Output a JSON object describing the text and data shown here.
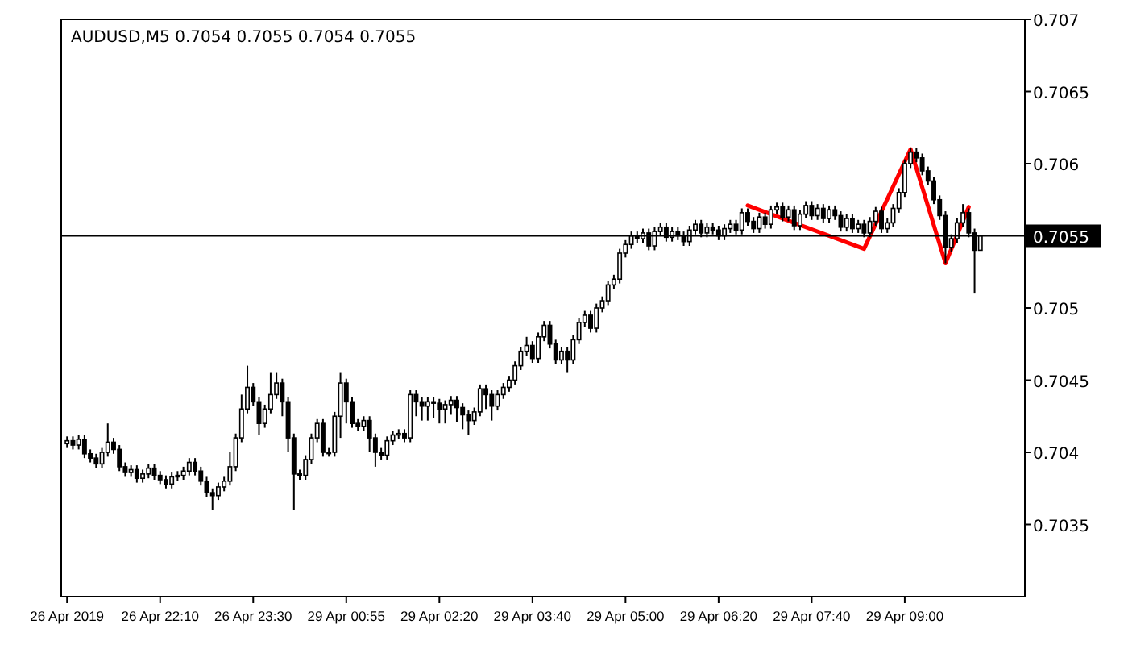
{
  "chart_data": {
    "type": "candlestick",
    "title": "AUDUSD,M5 0.7054 0.7055 0.7054 0.7055",
    "categories": [
      "26 Apr 2019",
      null,
      null,
      null,
      null,
      null,
      null,
      null,
      null,
      null,
      null,
      null,
      null,
      null,
      null,
      null,
      "26 Apr 22:10",
      null,
      null,
      null,
      null,
      null,
      null,
      null,
      null,
      null,
      null,
      null,
      null,
      null,
      null,
      null,
      "26 Apr 23:30",
      null,
      null,
      null,
      null,
      null,
      null,
      null,
      null,
      null,
      null,
      null,
      null,
      null,
      null,
      null,
      "29 Apr 00:55",
      null,
      null,
      null,
      null,
      null,
      null,
      null,
      null,
      null,
      null,
      null,
      null,
      null,
      null,
      null,
      "29 Apr 02:20",
      null,
      null,
      null,
      null,
      null,
      null,
      null,
      null,
      null,
      null,
      null,
      null,
      null,
      null,
      null,
      "29 Apr 03:40",
      null,
      null,
      null,
      null,
      null,
      null,
      null,
      null,
      null,
      null,
      null,
      null,
      null,
      null,
      null,
      "29 Apr 05:00",
      null,
      null,
      null,
      null,
      null,
      null,
      null,
      null,
      null,
      null,
      null,
      null,
      null,
      null,
      null,
      "29 Apr 06:20",
      null,
      null,
      null,
      null,
      null,
      null,
      null,
      null,
      null,
      null,
      null,
      null,
      null,
      null,
      null,
      "29 Apr 07:40",
      null,
      null,
      null,
      null,
      null,
      null,
      null,
      null,
      null,
      null,
      null,
      null,
      null,
      null,
      null,
      "29 Apr 09:00",
      null,
      null,
      null,
      null,
      null,
      null,
      null,
      null,
      null,
      null,
      null,
      null,
      null
    ],
    "ylim": [
      0.703,
      0.707
    ],
    "yticks": [
      0.7035,
      0.704,
      0.7045,
      0.705,
      0.706,
      0.7065,
      0.707
    ],
    "grid": false,
    "ref_lines": [
      {
        "axis": "y",
        "value": 0.7055,
        "label": "0.7055",
        "color": "#000000"
      }
    ],
    "series": [
      {
        "color": "#000000",
        "ohlc": [
          [
            0.70406,
            0.70411,
            0.70403,
            0.70408
          ],
          [
            0.70408,
            0.70411,
            0.70402,
            0.70405
          ],
          [
            0.70405,
            0.70412,
            0.70402,
            0.70409
          ],
          [
            0.70409,
            0.70412,
            0.70396,
            0.70399
          ],
          [
            0.70399,
            0.70402,
            0.70393,
            0.70396
          ],
          [
            0.70396,
            0.70399,
            0.70389,
            0.70392
          ],
          [
            0.70392,
            0.70403,
            0.70389,
            0.704
          ],
          [
            0.704,
            0.7042,
            0.70397,
            0.70407
          ],
          [
            0.70407,
            0.7041,
            0.70399,
            0.70402
          ],
          [
            0.70402,
            0.70405,
            0.70387,
            0.7039
          ],
          [
            0.7039,
            0.70393,
            0.70383,
            0.70386
          ],
          [
            0.70386,
            0.70391,
            0.70383,
            0.70388
          ],
          [
            0.70388,
            0.70391,
            0.70379,
            0.70382
          ],
          [
            0.70382,
            0.70388,
            0.70379,
            0.70385
          ],
          [
            0.70385,
            0.70392,
            0.70382,
            0.70389
          ],
          [
            0.70389,
            0.70392,
            0.70381,
            0.70384
          ],
          [
            0.70384,
            0.70387,
            0.70378,
            0.70381
          ],
          [
            0.70381,
            0.70384,
            0.70375,
            0.70378
          ],
          [
            0.70378,
            0.70386,
            0.70375,
            0.70383
          ],
          [
            0.70383,
            0.70387,
            0.7038,
            0.70384
          ],
          [
            0.70384,
            0.7039,
            0.70381,
            0.70387
          ],
          [
            0.70387,
            0.70396,
            0.70384,
            0.70393
          ],
          [
            0.70393,
            0.70396,
            0.70384,
            0.70387
          ],
          [
            0.70387,
            0.7039,
            0.70377,
            0.7038
          ],
          [
            0.7038,
            0.70383,
            0.70369,
            0.70372
          ],
          [
            0.70372,
            0.70375,
            0.7036,
            0.7037
          ],
          [
            0.7037,
            0.70379,
            0.70367,
            0.70376
          ],
          [
            0.70376,
            0.70383,
            0.70373,
            0.7038
          ],
          [
            0.7038,
            0.704,
            0.70377,
            0.7039
          ],
          [
            0.7039,
            0.70413,
            0.70387,
            0.7041
          ],
          [
            0.7041,
            0.7044,
            0.70407,
            0.7043
          ],
          [
            0.7043,
            0.7046,
            0.70427,
            0.70445
          ],
          [
            0.70445,
            0.70448,
            0.70432,
            0.70435
          ],
          [
            0.70435,
            0.70438,
            0.70412,
            0.7042
          ],
          [
            0.7042,
            0.70433,
            0.70417,
            0.7043
          ],
          [
            0.7043,
            0.70455,
            0.70427,
            0.7044
          ],
          [
            0.7044,
            0.70455,
            0.70437,
            0.70448
          ],
          [
            0.70448,
            0.70451,
            0.70425,
            0.70435
          ],
          [
            0.70435,
            0.70438,
            0.704,
            0.7041
          ],
          [
            0.7041,
            0.70413,
            0.7036,
            0.70385
          ],
          [
            0.70385,
            0.70388,
            0.70381,
            0.70384
          ],
          [
            0.70384,
            0.70398,
            0.70381,
            0.70395
          ],
          [
            0.70395,
            0.70413,
            0.70392,
            0.7041
          ],
          [
            0.7041,
            0.70423,
            0.70407,
            0.7042
          ],
          [
            0.7042,
            0.70423,
            0.70397,
            0.704
          ],
          [
            0.704,
            0.70403,
            0.70397,
            0.704
          ],
          [
            0.704,
            0.70428,
            0.70397,
            0.70425
          ],
          [
            0.70425,
            0.70455,
            0.7041,
            0.70448
          ],
          [
            0.70448,
            0.70451,
            0.7042,
            0.70435
          ],
          [
            0.70435,
            0.70438,
            0.70417,
            0.7042
          ],
          [
            0.7042,
            0.70423,
            0.70415,
            0.70418
          ],
          [
            0.70418,
            0.70425,
            0.70415,
            0.70422
          ],
          [
            0.70422,
            0.70425,
            0.704,
            0.7041
          ],
          [
            0.7041,
            0.70413,
            0.7039,
            0.704
          ],
          [
            0.704,
            0.70403,
            0.70395,
            0.70398
          ],
          [
            0.70398,
            0.70411,
            0.70395,
            0.70408
          ],
          [
            0.70408,
            0.70415,
            0.70405,
            0.70412
          ],
          [
            0.70412,
            0.70416,
            0.70409,
            0.70413
          ],
          [
            0.70413,
            0.70416,
            0.70407,
            0.7041
          ],
          [
            0.7041,
            0.70443,
            0.70407,
            0.7044
          ],
          [
            0.7044,
            0.70443,
            0.70425,
            0.70435
          ],
          [
            0.70435,
            0.70438,
            0.70422,
            0.70432
          ],
          [
            0.70432,
            0.70438,
            0.70422,
            0.70435
          ],
          [
            0.70435,
            0.70438,
            0.70424,
            0.70434
          ],
          [
            0.70434,
            0.70437,
            0.7042,
            0.7043
          ],
          [
            0.7043,
            0.70436,
            0.7042,
            0.70433
          ],
          [
            0.70433,
            0.70439,
            0.70426,
            0.70436
          ],
          [
            0.70436,
            0.70439,
            0.70421,
            0.70431
          ],
          [
            0.70431,
            0.70434,
            0.70416,
            0.70426
          ],
          [
            0.70426,
            0.70429,
            0.70412,
            0.70422
          ],
          [
            0.70422,
            0.70431,
            0.70419,
            0.70428
          ],
          [
            0.70428,
            0.70447,
            0.70425,
            0.70444
          ],
          [
            0.70444,
            0.70447,
            0.7043,
            0.7044
          ],
          [
            0.7044,
            0.70443,
            0.70422,
            0.70432
          ],
          [
            0.70432,
            0.70443,
            0.70429,
            0.7044
          ],
          [
            0.7044,
            0.70448,
            0.70437,
            0.70445
          ],
          [
            0.70445,
            0.70453,
            0.70442,
            0.7045
          ],
          [
            0.7045,
            0.70463,
            0.70447,
            0.7046
          ],
          [
            0.7046,
            0.70473,
            0.70457,
            0.7047
          ],
          [
            0.7047,
            0.7048,
            0.70467,
            0.70474
          ],
          [
            0.70474,
            0.70477,
            0.70462,
            0.70465
          ],
          [
            0.70465,
            0.70483,
            0.70462,
            0.7048
          ],
          [
            0.7048,
            0.70491,
            0.70477,
            0.70488
          ],
          [
            0.70488,
            0.70491,
            0.70472,
            0.70475
          ],
          [
            0.70475,
            0.70478,
            0.70461,
            0.70464
          ],
          [
            0.70464,
            0.70473,
            0.70461,
            0.7047
          ],
          [
            0.7047,
            0.70473,
            0.70455,
            0.70464
          ],
          [
            0.70464,
            0.70481,
            0.70461,
            0.70478
          ],
          [
            0.70478,
            0.70493,
            0.70475,
            0.7049
          ],
          [
            0.7049,
            0.70498,
            0.70487,
            0.70495
          ],
          [
            0.70495,
            0.70498,
            0.70483,
            0.70486
          ],
          [
            0.70486,
            0.70503,
            0.70483,
            0.705
          ],
          [
            0.705,
            0.70508,
            0.70497,
            0.70505
          ],
          [
            0.70505,
            0.70519,
            0.70502,
            0.70516
          ],
          [
            0.70516,
            0.70523,
            0.70513,
            0.7052
          ],
          [
            0.7052,
            0.70541,
            0.70517,
            0.70538
          ],
          [
            0.70538,
            0.70547,
            0.70535,
            0.70544
          ],
          [
            0.70544,
            0.70553,
            0.70541,
            0.7055
          ],
          [
            0.7055,
            0.70553,
            0.70545,
            0.70548
          ],
          [
            0.70548,
            0.70555,
            0.70545,
            0.70552
          ],
          [
            0.70552,
            0.70555,
            0.7054,
            0.70543
          ],
          [
            0.70543,
            0.70556,
            0.7054,
            0.70553
          ],
          [
            0.70553,
            0.70559,
            0.7055,
            0.70556
          ],
          [
            0.70556,
            0.70559,
            0.70546,
            0.70549
          ],
          [
            0.70549,
            0.70556,
            0.70546,
            0.70553
          ],
          [
            0.70553,
            0.70556,
            0.70547,
            0.7055
          ],
          [
            0.7055,
            0.70553,
            0.70543,
            0.70546
          ],
          [
            0.70546,
            0.70557,
            0.70543,
            0.70554
          ],
          [
            0.70554,
            0.70561,
            0.70551,
            0.70558
          ],
          [
            0.70558,
            0.70561,
            0.70549,
            0.70552
          ],
          [
            0.70552,
            0.70559,
            0.70549,
            0.70556
          ],
          [
            0.70556,
            0.70559,
            0.70551,
            0.70554
          ],
          [
            0.70554,
            0.70557,
            0.70547,
            0.7055
          ],
          [
            0.7055,
            0.70558,
            0.70547,
            0.70555
          ],
          [
            0.70555,
            0.70561,
            0.70552,
            0.70558
          ],
          [
            0.70558,
            0.70561,
            0.70551,
            0.70554
          ],
          [
            0.70554,
            0.70569,
            0.70551,
            0.70566
          ],
          [
            0.70566,
            0.70569,
            0.70557,
            0.7056
          ],
          [
            0.7056,
            0.70563,
            0.70552,
            0.70555
          ],
          [
            0.70555,
            0.70566,
            0.70552,
            0.70563
          ],
          [
            0.70563,
            0.70566,
            0.70555,
            0.70558
          ],
          [
            0.70558,
            0.70571,
            0.70555,
            0.70568
          ],
          [
            0.70568,
            0.70573,
            0.70565,
            0.7057
          ],
          [
            0.7057,
            0.70573,
            0.7056,
            0.70563
          ],
          [
            0.70563,
            0.70571,
            0.7056,
            0.70568
          ],
          [
            0.70568,
            0.70571,
            0.70554,
            0.70557
          ],
          [
            0.70557,
            0.70568,
            0.70554,
            0.70565
          ],
          [
            0.70565,
            0.70574,
            0.70562,
            0.70571
          ],
          [
            0.70571,
            0.70574,
            0.70561,
            0.70564
          ],
          [
            0.70564,
            0.70572,
            0.70561,
            0.70569
          ],
          [
            0.70569,
            0.70572,
            0.70559,
            0.70562
          ],
          [
            0.70562,
            0.70571,
            0.70559,
            0.70568
          ],
          [
            0.70568,
            0.70571,
            0.70561,
            0.70564
          ],
          [
            0.70564,
            0.70567,
            0.70553,
            0.70556
          ],
          [
            0.70556,
            0.70565,
            0.70553,
            0.70562
          ],
          [
            0.70562,
            0.70565,
            0.70552,
            0.70555
          ],
          [
            0.70555,
            0.70561,
            0.70552,
            0.70558
          ],
          [
            0.70558,
            0.70561,
            0.70549,
            0.70552
          ],
          [
            0.70552,
            0.70563,
            0.70549,
            0.7056
          ],
          [
            0.7056,
            0.7057,
            0.70557,
            0.70567
          ],
          [
            0.70567,
            0.7057,
            0.70552,
            0.70555
          ],
          [
            0.70555,
            0.70562,
            0.70552,
            0.70559
          ],
          [
            0.70559,
            0.70572,
            0.70556,
            0.70569
          ],
          [
            0.70569,
            0.70583,
            0.70566,
            0.7058
          ],
          [
            0.7058,
            0.70603,
            0.70577,
            0.706
          ],
          [
            0.706,
            0.70611,
            0.70597,
            0.70608
          ],
          [
            0.70608,
            0.70611,
            0.70601,
            0.70604
          ],
          [
            0.70604,
            0.70607,
            0.70592,
            0.70595
          ],
          [
            0.70595,
            0.70598,
            0.70585,
            0.70588
          ],
          [
            0.70588,
            0.70591,
            0.70572,
            0.70575
          ],
          [
            0.70575,
            0.70578,
            0.70561,
            0.70564
          ],
          [
            0.70564,
            0.70567,
            0.70531,
            0.70542
          ],
          [
            0.70542,
            0.70551,
            0.70539,
            0.70548
          ],
          [
            0.70548,
            0.70562,
            0.70545,
            0.70559
          ],
          [
            0.70559,
            0.70572,
            0.70556,
            0.70566
          ],
          [
            0.70566,
            0.70569,
            0.70549,
            0.70552
          ],
          [
            0.70552,
            0.70555,
            0.7051,
            0.7054
          ],
          [
            0.7054,
            0.7055,
            0.7054,
            0.7055
          ]
        ]
      },
      {
        "type": "line",
        "color": "#ff0000",
        "values": [
          null,
          null,
          null,
          null,
          null,
          null,
          null,
          null,
          null,
          null,
          null,
          null,
          null,
          null,
          null,
          null,
          null,
          null,
          null,
          null,
          null,
          null,
          null,
          null,
          null,
          null,
          null,
          null,
          null,
          null,
          null,
          null,
          null,
          null,
          null,
          null,
          null,
          null,
          null,
          null,
          null,
          null,
          null,
          null,
          null,
          null,
          null,
          null,
          null,
          null,
          null,
          null,
          null,
          null,
          null,
          null,
          null,
          null,
          null,
          null,
          null,
          null,
          null,
          null,
          null,
          null,
          null,
          null,
          null,
          null,
          null,
          null,
          null,
          null,
          null,
          null,
          null,
          null,
          null,
          null,
          null,
          null,
          null,
          null,
          null,
          null,
          null,
          null,
          null,
          null,
          null,
          null,
          null,
          null,
          null,
          null,
          null,
          null,
          null,
          null,
          null,
          null,
          null,
          null,
          null,
          null,
          null,
          null,
          null,
          null,
          null,
          null,
          null,
          null,
          null,
          null,
          null,
          0.70571,
          null,
          null,
          null,
          null,
          null,
          null,
          null,
          null,
          null,
          null,
          null,
          null,
          null,
          null,
          null,
          null,
          null,
          null,
          null,
          0.70541,
          null,
          null,
          null,
          null,
          null,
          null,
          null,
          0.7061,
          null,
          null,
          null,
          null,
          null,
          0.70531,
          null,
          null,
          null,
          0.7057,
          null,
          null
        ]
      }
    ]
  }
}
